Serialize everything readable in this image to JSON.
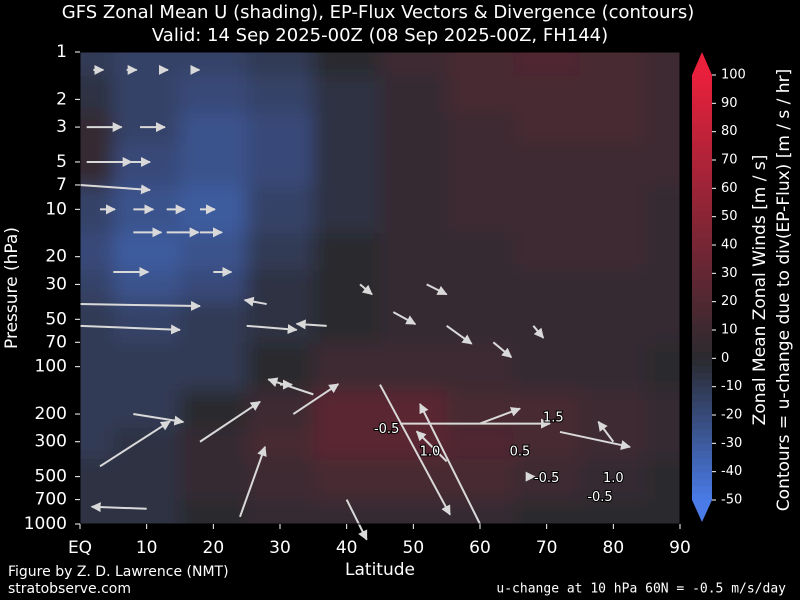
{
  "chart_data": {
    "type": "contour",
    "title": "GFS Zonal Mean U (shading), EP-Flux Vectors & Divergence (contours)",
    "subtitle": "Valid: 14 Sep 2025-00Z  (08 Sep 2025-00Z, FH144)",
    "x_label": "Latitude",
    "y_label": "Pressure (hPa)",
    "xlim": [
      0,
      90
    ],
    "xticks": [
      {
        "value": 0,
        "label": "EQ"
      },
      10,
      20,
      30,
      40,
      50,
      60,
      70,
      80,
      90
    ],
    "ylim": [
      1000,
      1
    ],
    "y_log": true,
    "yticks": [
      1,
      2,
      3,
      5,
      7,
      10,
      20,
      30,
      50,
      70,
      100,
      200,
      300,
      500,
      700,
      1000
    ],
    "lat": [
      0,
      10,
      20,
      30,
      40,
      50,
      60,
      70,
      80,
      90
    ],
    "pressure": [
      1,
      2,
      3,
      5,
      10,
      20,
      30,
      50,
      100,
      200,
      300,
      500,
      1000
    ],
    "values": [
      [
        -10,
        -15,
        -15,
        -10,
        0,
        10,
        15,
        20,
        15,
        10
      ],
      [
        -5,
        -15,
        -20,
        -15,
        -5,
        5,
        15,
        15,
        15,
        10
      ],
      [
        5,
        -15,
        -25,
        -20,
        -5,
        5,
        10,
        15,
        15,
        10
      ],
      [
        5,
        -20,
        -25,
        -20,
        -5,
        5,
        10,
        10,
        10,
        10
      ],
      [
        -15,
        -25,
        -30,
        -15,
        -5,
        5,
        10,
        10,
        10,
        5
      ],
      [
        -20,
        -30,
        -25,
        -10,
        0,
        5,
        5,
        10,
        10,
        5
      ],
      [
        -15,
        -25,
        -20,
        -5,
        0,
        5,
        5,
        5,
        5,
        5
      ],
      [
        -10,
        -15,
        -10,
        -5,
        0,
        5,
        5,
        5,
        5,
        5
      ],
      [
        -10,
        -10,
        -10,
        0,
        10,
        10,
        10,
        5,
        5,
        0
      ],
      [
        -10,
        -10,
        0,
        10,
        25,
        25,
        15,
        15,
        10,
        5
      ],
      [
        -10,
        -5,
        5,
        15,
        25,
        25,
        20,
        15,
        10,
        5
      ],
      [
        -5,
        -5,
        5,
        10,
        15,
        15,
        15,
        10,
        5,
        0
      ],
      [
        -5,
        -5,
        0,
        5,
        5,
        5,
        5,
        0,
        0,
        0
      ]
    ],
    "colorbar": {
      "label": "Zonal Mean Zonal Winds  [m / s]",
      "label2": "Contours = u-change due to div(EP-Flux) [m / s / hr]",
      "lim": [
        -50,
        100
      ],
      "ticks": [
        -50,
        -40,
        -30,
        -20,
        -10,
        0,
        10,
        20,
        30,
        40,
        50,
        60,
        70,
        80,
        90,
        100
      ],
      "negative_color": "#4a7be8",
      "zero_color": "#2a2a2f",
      "positive_color": "#e8203c"
    },
    "vectors": {
      "name": "EP-Flux",
      "color": "#d9d9d9",
      "lat": [
        2,
        7,
        12,
        17,
        1,
        9,
        1,
        6,
        0,
        3,
        8,
        13,
        18,
        8,
        13,
        18,
        5,
        20,
        0,
        28,
        0,
        25,
        37,
        47,
        55,
        62,
        68,
        52,
        42,
        30,
        8,
        3,
        18,
        24,
        10,
        32,
        35,
        45,
        48,
        60,
        72,
        55,
        60,
        40,
        67,
        80
      ],
      "pressure": [
        1.3,
        1.3,
        1.3,
        1.3,
        3,
        3,
        5,
        5,
        7,
        10,
        10,
        10,
        10,
        14,
        14,
        14,
        25,
        25,
        40,
        40,
        55,
        55,
        55,
        45,
        55,
        70,
        55,
        30,
        30,
        130,
        200,
        430,
        300,
        900,
        800,
        200,
        150,
        130,
        230,
        230,
        260,
        400,
        1000,
        700,
        500,
        300
      ],
      "u": [
        10,
        10,
        8,
        6,
        35,
        25,
        45,
        30,
        70,
        15,
        20,
        18,
        15,
        28,
        32,
        22,
        35,
        18,
        120,
        -22,
        100,
        50,
        -30,
        22,
        25,
        18,
        10,
        20,
        12,
        12,
        50,
        70,
        60,
        25,
        -55,
        45,
        -45,
        70,
        150,
        40,
        70,
        -30,
        -60,
        20,
        8,
        -15
      ],
      "v": [
        0,
        0,
        0,
        0,
        0,
        0,
        0,
        0,
        -5,
        0,
        0,
        0,
        0,
        0,
        0,
        0,
        0,
        0,
        -2,
        4,
        -4,
        -4,
        2,
        -12,
        -18,
        -15,
        -12,
        -10,
        -10,
        0,
        -8,
        45,
        40,
        70,
        2,
        30,
        15,
        -130,
        0,
        15,
        -15,
        30,
        120,
        -40,
        0,
        20
      ]
    },
    "contour_labels": {
      "labels": [
        "1.0",
        "-0.5",
        "1.5",
        "-0.5",
        "1.0",
        "-0.5",
        "0.5"
      ],
      "lat": [
        52.5,
        46,
        71,
        70,
        80,
        78,
        66
      ],
      "pressure": [
        348,
        250,
        212,
        512,
        512,
        680,
        348
      ]
    }
  },
  "footer": {
    "credit": "Figure by Z. D. Lawrence (NMT)",
    "site": "stratobserve.com",
    "note": "u-change at 10 hPa 60N = -0.5 m/s/day"
  }
}
